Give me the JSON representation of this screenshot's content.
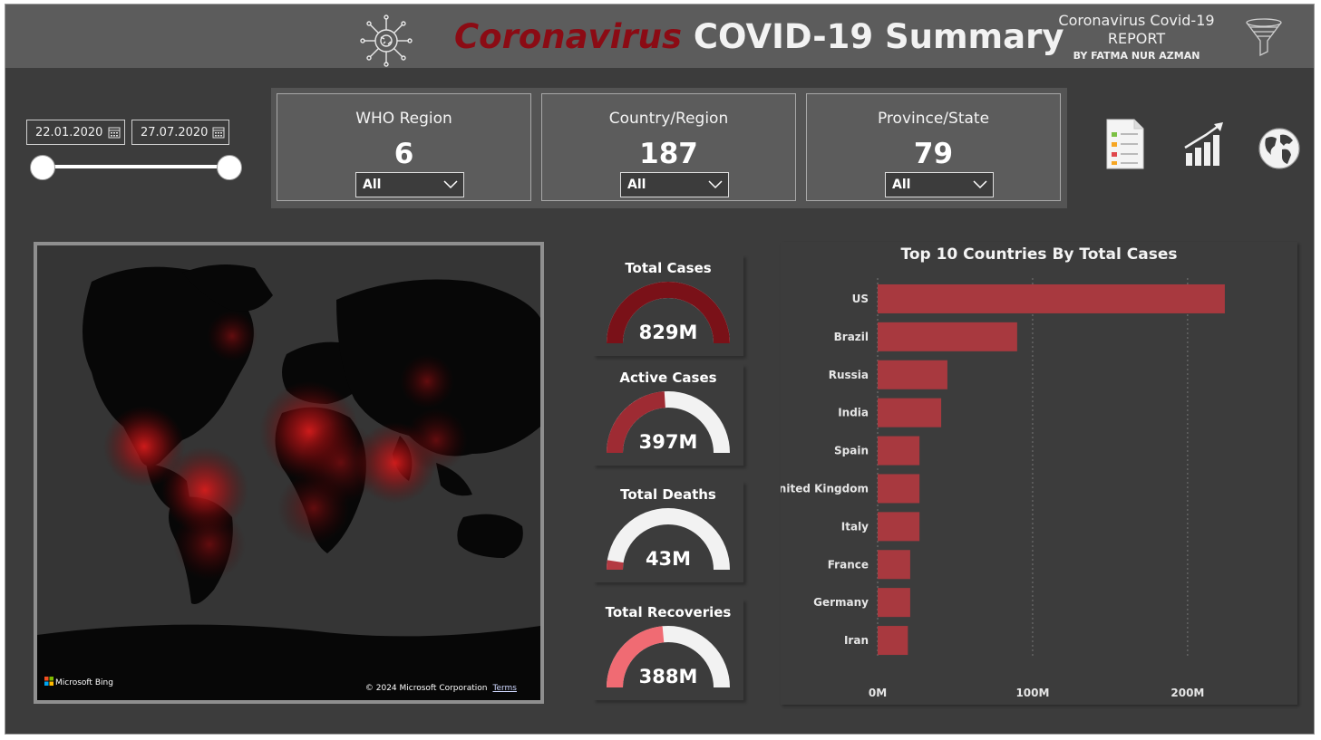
{
  "header": {
    "title_red": "Coronavirus",
    "title_white": "COVID-19 Summary",
    "report_line1": "Coronavirus Covid-19",
    "report_line2": "REPORT",
    "report_by": "BY FATMA NUR AZMAN"
  },
  "date_filter": {
    "start": "22.01.2020",
    "end": "27.07.2020"
  },
  "kpi_cards": [
    {
      "label": "WHO Region",
      "value": "6",
      "selected": "All"
    },
    {
      "label": "Country/Region",
      "value": "187",
      "selected": "All"
    },
    {
      "label": "Province/State",
      "value": "79",
      "selected": "All"
    }
  ],
  "nav_icons": [
    "report-page-icon",
    "growth-chart-icon",
    "globe-icon"
  ],
  "map": {
    "attribution": "Microsoft Bing",
    "copyright": "© 2024 Microsoft Corporation",
    "terms": "Terms"
  },
  "gauges": [
    {
      "title": "Total Cases",
      "value": "829M",
      "fraction": 1.0,
      "color": "#7a1118"
    },
    {
      "title": "Active Cases",
      "value": "397M",
      "fraction": 0.48,
      "color": "#9e2b33"
    },
    {
      "title": "Total Deaths",
      "value": "43M",
      "fraction": 0.05,
      "color": "#b33a42"
    },
    {
      "title": "Total Recoveries",
      "value": "388M",
      "fraction": 0.47,
      "color": "#f06b73"
    }
  ],
  "colors": {
    "background": "#3c3c3c",
    "header": "#5c5c5c",
    "bar": "#a8393f",
    "title_red": "#8b0b14",
    "gauge_track": "#f2f2f2"
  },
  "chart_data": {
    "type": "bar",
    "orientation": "horizontal",
    "title": "Top 10 Countries By Total Cases",
    "categories": [
      "US",
      "Brazil",
      "Russia",
      "India",
      "Spain",
      "United Kingdom",
      "Italy",
      "France",
      "Germany",
      "Iran"
    ],
    "values": [
      224,
      90,
      45,
      41,
      27,
      27,
      27,
      21,
      21,
      19.5
    ],
    "unit": "M",
    "ticks": [
      "0M",
      "100M",
      "200M"
    ],
    "tick_values": [
      0,
      100,
      200
    ],
    "xlim": [
      0,
      265
    ],
    "grid": true
  }
}
